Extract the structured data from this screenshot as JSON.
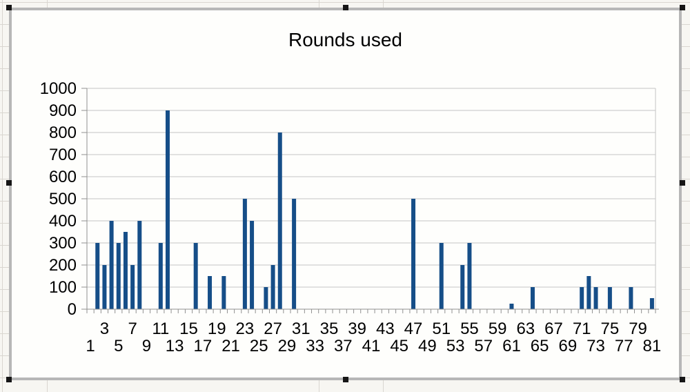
{
  "chart": {
    "title": "Rounds used",
    "bar_color": "#164e88",
    "grid_color": "#c4c4c4",
    "axis_color": "#909090",
    "text_color": "#000000"
  },
  "chart_data": {
    "type": "bar",
    "title": "Rounds used",
    "xlabel": "",
    "ylabel": "",
    "x_min": 1,
    "x_max": 81,
    "ylim": [
      0,
      1000
    ],
    "y_tick_step": 100,
    "grid": true,
    "legend": false,
    "x_tick_label_row_upper": [
      3,
      7,
      11,
      15,
      19,
      23,
      27,
      31,
      35,
      39,
      43,
      47,
      51,
      55,
      59,
      63,
      67,
      71,
      75,
      79
    ],
    "x_tick_label_row_lower": [
      1,
      5,
      9,
      13,
      17,
      21,
      25,
      29,
      33,
      37,
      41,
      45,
      49,
      53,
      57,
      61,
      65,
      69,
      73,
      77,
      81
    ],
    "values": [
      0,
      300,
      200,
      400,
      300,
      350,
      200,
      400,
      0,
      0,
      300,
      900,
      0,
      0,
      0,
      300,
      0,
      150,
      0,
      150,
      0,
      0,
      500,
      400,
      0,
      100,
      200,
      800,
      0,
      500,
      0,
      0,
      0,
      0,
      0,
      0,
      0,
      0,
      0,
      0,
      0,
      0,
      0,
      0,
      0,
      0,
      500,
      0,
      0,
      0,
      300,
      0,
      0,
      200,
      300,
      0,
      0,
      0,
      0,
      0,
      25,
      0,
      0,
      100,
      0,
      0,
      0,
      0,
      0,
      0,
      100,
      150,
      100,
      0,
      100,
      0,
      0,
      100,
      0,
      0,
      50
    ]
  }
}
